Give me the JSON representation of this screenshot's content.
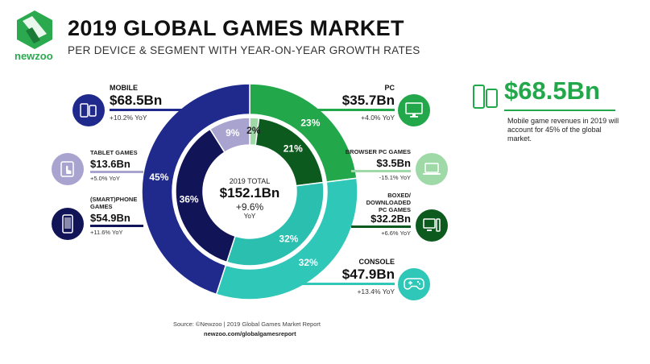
{
  "header": {
    "logo_text": "newzoo",
    "title": "2019 GLOBAL GAMES MARKET",
    "subtitle": "PER DEVICE & SEGMENT WITH YEAR-ON-YEAR GROWTH RATES"
  },
  "colors": {
    "mobile": "#1f2a8c",
    "tablet": "#a9a3cf",
    "smartphone": "#121458",
    "pc": "#22a84b",
    "browser_pc": "#9fd9a8",
    "boxed_pc": "#0d5a1f",
    "console": "#2ec7b8",
    "console_inner": "#2bbfb0"
  },
  "center": {
    "label": "2019 TOTAL",
    "value": "$152.1Bn",
    "yoy": "+9.6%",
    "yoy_label": "YoY"
  },
  "labels": {
    "mobile": {
      "name": "MOBILE",
      "value": "$68.5Bn",
      "yoy": "+10.2% YoY",
      "icon": "mobile-devices-icon"
    },
    "tablet": {
      "name_lines": [
        "TABLET GAMES"
      ],
      "value": "$13.6Bn",
      "yoy": "+5.0% YoY",
      "icon": "tablet-icon"
    },
    "smartphone": {
      "name_lines": [
        "(SMART)PHONE",
        "GAMES"
      ],
      "value": "$54.9Bn",
      "yoy": "+11.6% YoY",
      "icon": "smartphone-icon"
    },
    "pc": {
      "name": "PC",
      "value": "$35.7Bn",
      "yoy": "+4.0% YoY",
      "icon": "monitor-icon"
    },
    "browser_pc": {
      "name_lines": [
        "BROWSER PC GAMES"
      ],
      "value": "$3.5Bn",
      "yoy": "-15.1% YoY",
      "icon": "laptop-icon"
    },
    "boxed_pc": {
      "name_lines": [
        "BOXED/",
        "DOWNLOADED",
        "PC GAMES"
      ],
      "value": "$32.2Bn",
      "yoy": "+6.6% YoY",
      "icon": "desktop-tower-icon"
    },
    "console": {
      "name": "CONSOLE",
      "value": "$47.9Bn",
      "yoy": "+13.4% YoY",
      "icon": "gamepad-icon"
    }
  },
  "callout": {
    "value": "$68.5Bn",
    "description": "Mobile game revenues in 2019 will account for 45% of the global market.",
    "icon": "mobile-devices-icon"
  },
  "footer": {
    "source": "Source: ©Newzoo | 2019 Global Games Market Report",
    "site": "newzoo.com/globalgamesreport"
  },
  "chart_data": [
    {
      "type": "pie",
      "ring": "outer",
      "categories": [
        "PC",
        "Console",
        "Mobile"
      ],
      "values": [
        23,
        32,
        45
      ],
      "value_labels": [
        "23%",
        "32%",
        "45%"
      ]
    },
    {
      "type": "pie",
      "ring": "inner",
      "categories": [
        "Browser PC Games",
        "Boxed/Downloaded PC Games",
        "Console",
        "(Smart)phone Games",
        "Tablet Games"
      ],
      "values": [
        2,
        21,
        32,
        36,
        9
      ],
      "value_labels": [
        "2%",
        "21%",
        "32%",
        "36%",
        "9%"
      ]
    }
  ]
}
